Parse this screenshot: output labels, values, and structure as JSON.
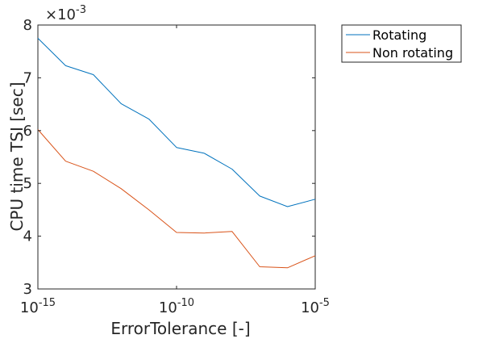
{
  "chart_data": {
    "type": "line",
    "title": "",
    "xlabel": "ErrorTolerance [-]",
    "ylabel": "CPU time TSI [sec]",
    "xscale": "log",
    "xlim": [
      1e-15,
      1e-05
    ],
    "ylim": [
      0.003,
      0.008
    ],
    "x_ticks": [
      1e-15,
      1e-10,
      1e-05
    ],
    "x_tick_labels": [
      {
        "base": "10",
        "exp": "-15"
      },
      {
        "base": "10",
        "exp": "-10"
      },
      {
        "base": "10",
        "exp": "-5"
      }
    ],
    "y_ticks": [
      0.003,
      0.004,
      0.005,
      0.006,
      0.007,
      0.008
    ],
    "y_tick_labels": [
      "3",
      "4",
      "5",
      "6",
      "7",
      "8"
    ],
    "y_multiplier": {
      "base": "×10",
      "exp": "-3"
    },
    "grid": false,
    "legend_position": "outside-top-right",
    "x": [
      1e-15,
      1e-14,
      1e-13,
      1e-12,
      1e-11,
      1e-10,
      1e-09,
      1e-08,
      1e-07,
      1e-06,
      1e-05
    ],
    "series": [
      {
        "name": "Rotating",
        "color": "#0072BD",
        "values": [
          0.00775,
          0.00723,
          0.00706,
          0.00651,
          0.00622,
          0.00568,
          0.00557,
          0.00527,
          0.00476,
          0.00456,
          0.0047
        ]
      },
      {
        "name": "Non rotating",
        "color": "#D95319",
        "values": [
          0.00602,
          0.00542,
          0.00523,
          0.0049,
          0.0045,
          0.00407,
          0.00406,
          0.00409,
          0.00342,
          0.0034,
          0.00363
        ]
      }
    ]
  }
}
